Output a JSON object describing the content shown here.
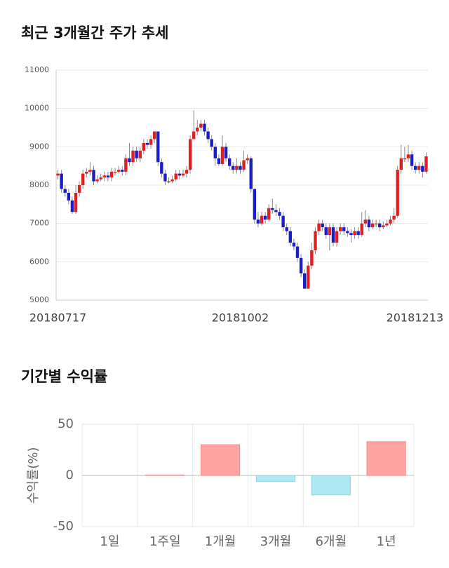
{
  "chart_data": [
    {
      "type": "candlestick",
      "title": "최근 3개월간 주가 추세",
      "categories": [
        "20180717",
        null,
        null,
        null,
        null,
        null,
        null,
        null,
        null,
        null,
        null,
        null,
        null,
        null,
        null,
        null,
        null,
        null,
        null,
        null,
        null,
        null,
        null,
        null,
        null,
        null,
        null,
        null,
        null,
        null,
        null,
        null,
        null,
        null,
        null,
        null,
        null,
        null,
        null,
        null,
        null,
        null,
        null,
        null,
        null,
        null,
        null,
        null,
        null,
        null,
        null,
        "20181002",
        null,
        null,
        null,
        null,
        null,
        null,
        null,
        null,
        null,
        null,
        null,
        null,
        null,
        null,
        null,
        null,
        null,
        null,
        null,
        null,
        null,
        null,
        null,
        null,
        null,
        null,
        null,
        null,
        null,
        null,
        null,
        null,
        null,
        null,
        null,
        null,
        null,
        null,
        null,
        null,
        null,
        null,
        null,
        null,
        null,
        null,
        null,
        null,
        null,
        null,
        null,
        "20181213"
      ],
      "open": [
        8250,
        8300,
        7900,
        7800,
        7600,
        7300,
        7800,
        8000,
        8300,
        8350,
        8400,
        8100,
        8150,
        8200,
        8250,
        8200,
        8350,
        8350,
        8400,
        8350,
        8700,
        8600,
        8900,
        8700,
        8900,
        9100,
        9050,
        9200,
        9400,
        8600,
        8300,
        8100,
        8100,
        8150,
        8300,
        8250,
        8300,
        8400,
        9200,
        9400,
        9500,
        9600,
        9400,
        9200,
        9000,
        8700,
        8550,
        9000,
        8700,
        8500,
        8400,
        8500,
        8400,
        8650,
        8700,
        7900,
        7100,
        7000,
        7200,
        7100,
        7400,
        7350,
        7300,
        7200,
        6900,
        6800,
        6500,
        6400,
        6100,
        5700,
        5300,
        5900,
        6300,
        6800,
        7000,
        6900,
        6700,
        6900,
        6500,
        6800,
        6900,
        6800,
        6750,
        6700,
        6800,
        6700,
        7000,
        7100,
        6900,
        7000,
        7000,
        6900,
        6950,
        7000,
        7100,
        7200,
        8400,
        8700,
        8700,
        8800,
        8500,
        8400,
        8500,
        8350
      ],
      "high": [
        8400,
        8400,
        8000,
        7900,
        7700,
        8000,
        8100,
        8400,
        8450,
        8600,
        8500,
        8250,
        8300,
        8350,
        8350,
        8450,
        8450,
        8500,
        8500,
        8800,
        9100,
        9000,
        9000,
        9000,
        9200,
        9200,
        9300,
        9400,
        9400,
        8700,
        8400,
        8200,
        8250,
        8400,
        8400,
        8400,
        8500,
        9300,
        9950,
        9700,
        9700,
        9700,
        9500,
        9300,
        9100,
        8800,
        9300,
        9100,
        8800,
        8600,
        8700,
        8600,
        8900,
        8800,
        8750,
        7900,
        7300,
        7300,
        7300,
        7500,
        7650,
        7500,
        7400,
        7300,
        7000,
        6900,
        6600,
        6500,
        6200,
        5800,
        6000,
        6500,
        6900,
        7100,
        7100,
        7000,
        7000,
        7000,
        6900,
        7000,
        7000,
        6900,
        6850,
        6900,
        6900,
        7300,
        7350,
        7200,
        7100,
        7100,
        7100,
        7050,
        7100,
        7200,
        7400,
        8500,
        9050,
        9000,
        9050,
        8900,
        8600,
        8600,
        8600,
        8850
      ],
      "low": [
        8150,
        7800,
        7700,
        7500,
        7250,
        7250,
        7700,
        7900,
        8200,
        8250,
        8000,
        8050,
        8100,
        8100,
        8100,
        8100,
        8250,
        8300,
        8250,
        8250,
        8500,
        8500,
        8600,
        8600,
        8800,
        8950,
        8950,
        9100,
        8500,
        8200,
        8000,
        8050,
        8050,
        8100,
        8150,
        8200,
        8200,
        8300,
        9200,
        9300,
        9400,
        9300,
        9100,
        8900,
        8500,
        8500,
        8500,
        8600,
        8400,
        8300,
        8300,
        8300,
        8350,
        8550,
        7800,
        7000,
        6900,
        6950,
        7000,
        7050,
        7250,
        7200,
        7100,
        6800,
        6700,
        6400,
        6300,
        6000,
        5600,
        5300,
        5300,
        5800,
        6200,
        6700,
        6800,
        6600,
        6300,
        6400,
        6400,
        6700,
        6700,
        6650,
        6500,
        6600,
        6600,
        6650,
        6900,
        6800,
        6850,
        6900,
        6800,
        6850,
        6900,
        6950,
        7000,
        7150,
        8300,
        8600,
        8600,
        8400,
        8300,
        8300,
        8200,
        8300
      ],
      "close": [
        8300,
        7900,
        7800,
        7600,
        7300,
        7800,
        8000,
        8300,
        8350,
        8400,
        8100,
        8150,
        8200,
        8250,
        8200,
        8350,
        8350,
        8400,
        8350,
        8700,
        8600,
        8900,
        8700,
        8900,
        9100,
        9050,
        9200,
        9400,
        8600,
        8300,
        8100,
        8100,
        8150,
        8300,
        8250,
        8300,
        8400,
        9200,
        9400,
        9500,
        9600,
        9400,
        9200,
        9000,
        8700,
        8550,
        9000,
        8700,
        8500,
        8400,
        8500,
        8400,
        8650,
        8700,
        7900,
        7100,
        7000,
        7200,
        7100,
        7400,
        7350,
        7300,
        7200,
        6900,
        6800,
        6500,
        6400,
        6100,
        5700,
        5300,
        5900,
        6300,
        6800,
        7000,
        6900,
        6700,
        6900,
        6500,
        6800,
        6900,
        6800,
        6750,
        6700,
        6800,
        6700,
        7000,
        7100,
        6900,
        7000,
        7000,
        6900,
        6950,
        7000,
        7100,
        7200,
        8400,
        8700,
        8700,
        8800,
        8500,
        8400,
        8500,
        8350,
        8750
      ],
      "up_color": "#e02020",
      "down_color": "#1a1ec8",
      "ylim": [
        5000,
        11000
      ],
      "yticks": [
        5000,
        6000,
        7000,
        8000,
        9000,
        10000,
        11000
      ],
      "grid": true
    },
    {
      "type": "bar",
      "title": "기간별 수익률",
      "ylabel": "수익률(%)",
      "categories": [
        "1일",
        "1주일",
        "1개월",
        "3개월",
        "6개월",
        "1년"
      ],
      "values": [
        0,
        0.5,
        30,
        -6,
        -19,
        33
      ],
      "positive_color": "#ffa3a3",
      "negative_color": "#aee8f2",
      "ylim": [
        -50,
        50
      ],
      "yticks": [
        -50,
        0,
        50
      ],
      "grid": true
    }
  ]
}
